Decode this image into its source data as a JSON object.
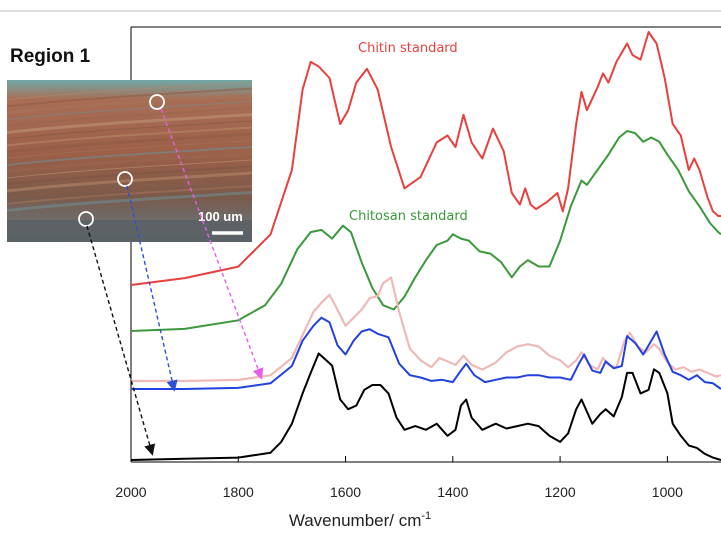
{
  "region_title": "Region 1",
  "scale_bar": {
    "label": "100 um"
  },
  "colors": {
    "chitin": "#e8413d",
    "chitosan": "#3a993a",
    "light_pink": "#f0b9b9",
    "blue": "#2242e0",
    "black": "#000000",
    "arrow_magenta": "#e65fe6",
    "arrow_blue": "#2b4fd8",
    "arrow_black": "#111111",
    "micrograph": "#8a5a45"
  },
  "chart_data": {
    "type": "line",
    "xlabel": "Wavenumber/ cm",
    "xlabel_superscript": "-1",
    "xlim": [
      2000,
      900
    ],
    "x_reversed": true,
    "xticks": [
      2000,
      1800,
      1600,
      1400,
      1200,
      1000
    ],
    "y_axis": "stacked, offset spectra (no y scale shown)",
    "annotations": [
      {
        "text": "Chitin standard",
        "series": "chitin"
      },
      {
        "text": "Chitosan standard",
        "series": "chitosan"
      }
    ],
    "series": [
      {
        "name": "Chitin standard",
        "key": "chitin",
        "color": "#e8413d",
        "x": [
          2000,
          1900,
          1800,
          1740,
          1700,
          1680,
          1665,
          1650,
          1630,
          1610,
          1595,
          1580,
          1560,
          1540,
          1515,
          1490,
          1460,
          1430,
          1410,
          1395,
          1380,
          1365,
          1345,
          1325,
          1305,
          1290,
          1275,
          1265,
          1255,
          1245,
          1225,
          1205,
          1195,
          1185,
          1170,
          1160,
          1150,
          1130,
          1120,
          1110,
          1095,
          1075,
          1065,
          1050,
          1035,
          1020,
          1005,
          990,
          975,
          960,
          950,
          940,
          925,
          915,
          905,
          900
        ],
        "y": [
          0.0,
          0.03,
          0.08,
          0.22,
          0.5,
          0.85,
          0.97,
          0.95,
          0.9,
          0.7,
          0.76,
          0.88,
          0.94,
          0.85,
          0.6,
          0.42,
          0.47,
          0.62,
          0.65,
          0.6,
          0.74,
          0.62,
          0.55,
          0.68,
          0.58,
          0.4,
          0.35,
          0.42,
          0.35,
          0.33,
          0.36,
          0.4,
          0.32,
          0.42,
          0.7,
          0.84,
          0.76,
          0.86,
          0.92,
          0.88,
          0.97,
          1.05,
          1.0,
          0.98,
          1.1,
          1.05,
          0.9,
          0.7,
          0.65,
          0.5,
          0.55,
          0.5,
          0.38,
          0.32,
          0.3,
          0.3
        ]
      },
      {
        "name": "Chitosan standard",
        "key": "chitosan",
        "color": "#3a993a",
        "x": [
          2000,
          1900,
          1800,
          1750,
          1720,
          1690,
          1665,
          1645,
          1625,
          1605,
          1590,
          1570,
          1550,
          1530,
          1510,
          1490,
          1470,
          1450,
          1430,
          1410,
          1400,
          1385,
          1370,
          1350,
          1330,
          1310,
          1290,
          1275,
          1260,
          1240,
          1220,
          1200,
          1180,
          1160,
          1150,
          1130,
          1110,
          1090,
          1075,
          1060,
          1045,
          1030,
          1015,
          1000,
          980,
          960,
          940,
          920,
          905,
          900
        ],
        "y": [
          0.0,
          0.01,
          0.05,
          0.12,
          0.22,
          0.38,
          0.46,
          0.47,
          0.43,
          0.49,
          0.46,
          0.32,
          0.2,
          0.12,
          0.1,
          0.16,
          0.25,
          0.33,
          0.4,
          0.42,
          0.45,
          0.43,
          0.42,
          0.37,
          0.36,
          0.32,
          0.25,
          0.3,
          0.33,
          0.3,
          0.3,
          0.42,
          0.58,
          0.7,
          0.68,
          0.75,
          0.82,
          0.9,
          0.93,
          0.92,
          0.88,
          0.9,
          0.88,
          0.82,
          0.75,
          0.65,
          0.58,
          0.5,
          0.46,
          0.45
        ]
      },
      {
        "name": "",
        "key": "light_pink",
        "color": "#f0b9b9",
        "x": [
          2000,
          1900,
          1800,
          1740,
          1700,
          1680,
          1660,
          1645,
          1630,
          1615,
          1600,
          1585,
          1570,
          1555,
          1540,
          1530,
          1515,
          1500,
          1480,
          1460,
          1440,
          1425,
          1410,
          1395,
          1380,
          1365,
          1345,
          1320,
          1300,
          1280,
          1260,
          1240,
          1220,
          1200,
          1185,
          1170,
          1160,
          1145,
          1130,
          1120,
          1110,
          1095,
          1080,
          1070,
          1055,
          1040,
          1025,
          1015,
          1000,
          985,
          970,
          955,
          940,
          925,
          910,
          900
        ],
        "y": [
          0.0,
          0.0,
          0.01,
          0.05,
          0.2,
          0.4,
          0.6,
          0.68,
          0.75,
          0.62,
          0.48,
          0.55,
          0.62,
          0.72,
          0.74,
          0.85,
          0.9,
          0.6,
          0.28,
          0.18,
          0.12,
          0.2,
          0.17,
          0.14,
          0.22,
          0.14,
          0.1,
          0.16,
          0.25,
          0.3,
          0.32,
          0.3,
          0.22,
          0.18,
          0.12,
          0.18,
          0.25,
          0.14,
          0.1,
          0.2,
          0.14,
          0.12,
          0.35,
          0.42,
          0.3,
          0.25,
          0.32,
          0.28,
          0.16,
          0.1,
          0.12,
          0.08,
          0.1,
          0.07,
          0.04,
          0.05
        ]
      },
      {
        "name": "",
        "key": "blue",
        "color": "#2242e0",
        "x": [
          2000,
          1900,
          1800,
          1740,
          1700,
          1680,
          1660,
          1645,
          1630,
          1615,
          1600,
          1585,
          1570,
          1555,
          1540,
          1520,
          1500,
          1480,
          1460,
          1440,
          1420,
          1400,
          1385,
          1375,
          1360,
          1340,
          1320,
          1300,
          1280,
          1260,
          1240,
          1220,
          1200,
          1180,
          1165,
          1155,
          1140,
          1125,
          1115,
          1100,
          1085,
          1075,
          1060,
          1045,
          1030,
          1020,
          1005,
          990,
          975,
          960,
          945,
          930,
          915,
          900
        ],
        "y": [
          0.0,
          0.0,
          0.01,
          0.05,
          0.2,
          0.42,
          0.55,
          0.62,
          0.58,
          0.38,
          0.3,
          0.42,
          0.5,
          0.52,
          0.48,
          0.45,
          0.22,
          0.12,
          0.1,
          0.07,
          0.08,
          0.06,
          0.16,
          0.22,
          0.12,
          0.06,
          0.08,
          0.1,
          0.1,
          0.12,
          0.12,
          0.1,
          0.1,
          0.08,
          0.22,
          0.3,
          0.16,
          0.14,
          0.24,
          0.18,
          0.2,
          0.46,
          0.4,
          0.3,
          0.42,
          0.5,
          0.3,
          0.15,
          0.12,
          0.08,
          0.12,
          0.06,
          0.05,
          0.0
        ]
      },
      {
        "name": "",
        "key": "black",
        "color": "#000000",
        "x": [
          2000,
          1900,
          1800,
          1740,
          1720,
          1700,
          1680,
          1665,
          1650,
          1635,
          1625,
          1610,
          1595,
          1580,
          1565,
          1550,
          1535,
          1520,
          1505,
          1490,
          1470,
          1450,
          1430,
          1410,
          1395,
          1385,
          1375,
          1365,
          1345,
          1320,
          1300,
          1280,
          1260,
          1240,
          1220,
          1200,
          1185,
          1170,
          1160,
          1150,
          1140,
          1125,
          1115,
          1100,
          1085,
          1075,
          1065,
          1050,
          1035,
          1025,
          1015,
          1000,
          990,
          975,
          960,
          945,
          930,
          915,
          900
        ],
        "y": [
          0.0,
          0.01,
          0.02,
          0.06,
          0.15,
          0.3,
          0.55,
          0.72,
          0.88,
          0.82,
          0.78,
          0.5,
          0.42,
          0.45,
          0.58,
          0.62,
          0.62,
          0.55,
          0.35,
          0.25,
          0.28,
          0.25,
          0.3,
          0.2,
          0.25,
          0.45,
          0.5,
          0.35,
          0.25,
          0.3,
          0.26,
          0.28,
          0.3,
          0.28,
          0.2,
          0.15,
          0.22,
          0.42,
          0.5,
          0.4,
          0.3,
          0.38,
          0.42,
          0.36,
          0.52,
          0.72,
          0.72,
          0.55,
          0.58,
          0.75,
          0.72,
          0.55,
          0.3,
          0.2,
          0.12,
          0.1,
          0.05,
          0.02,
          0.0
        ]
      }
    ]
  }
}
